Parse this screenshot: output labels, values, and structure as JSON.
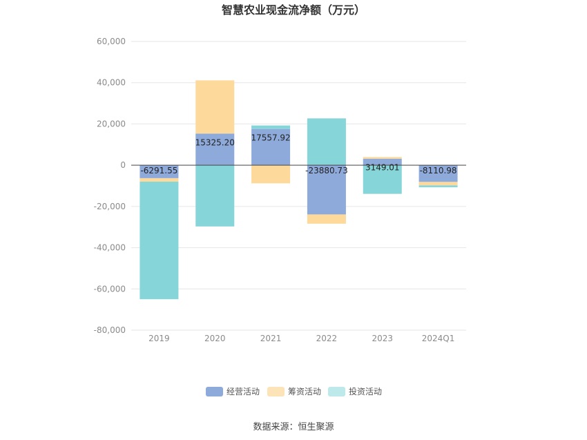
{
  "chart_data": {
    "type": "bar",
    "stacked": true,
    "title": "智慧农业现金流净额（万元）",
    "xlabel": "",
    "ylabel": "",
    "categories": [
      "2019",
      "2020",
      "2021",
      "2022",
      "2023",
      "2024Q1"
    ],
    "ylim": [
      -80000,
      60000
    ],
    "yticks": [
      60000,
      40000,
      20000,
      0,
      -20000,
      -40000,
      -60000,
      -80000
    ],
    "ytick_labels": [
      "60,000",
      "40,000",
      "20,000",
      "0",
      "-20,000",
      "-40,000",
      "-60,000",
      "-80,000"
    ],
    "grid": true,
    "legend_position": "bottom",
    "series": [
      {
        "name": "经营活动",
        "color": "#8eaadb",
        "values": [
          -6291.55,
          15325.2,
          17557.92,
          -23880.73,
          3149.01,
          -8110.98
        ],
        "labels": [
          "-6291.55",
          "15325.20",
          "17557.92",
          "-23880.73",
          "3149.01",
          "-8110.98"
        ]
      },
      {
        "name": "筹资活动",
        "color": "#fdd99b",
        "values": [
          -1700,
          25800,
          -8800,
          -4500,
          800,
          -1700
        ]
      },
      {
        "name": "投资活动",
        "color": "#86d5d9",
        "values": [
          -57000,
          -29700,
          1700,
          22700,
          -13900,
          -900
        ]
      }
    ]
  },
  "legend_swatch_colors": [
    "#8eaadb",
    "#fde3b8",
    "#bde9eb"
  ],
  "source": "数据来源：恒生聚源"
}
